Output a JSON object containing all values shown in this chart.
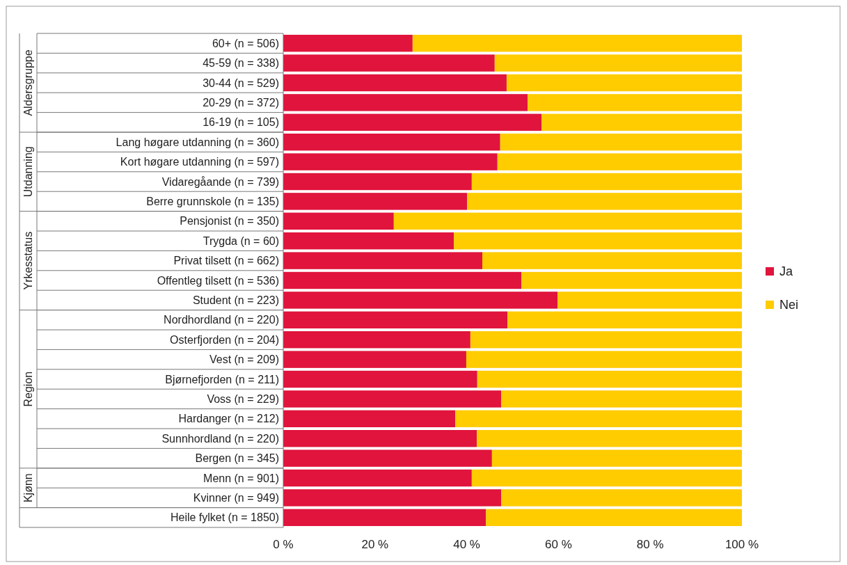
{
  "chart_data": {
    "type": "bar",
    "orientation": "horizontal",
    "stacked": true,
    "legend": "right",
    "grid": false,
    "categories": [
      "60+ (n = 506)",
      "45-59 (n = 338)",
      "30-44 (n = 529)",
      "20-29 (n = 372)",
      "16-19 (n = 105)",
      "Lang høgare utdanning (n = 360)",
      "Kort høgare utdanning (n = 597)",
      "Vidaregåande (n = 739)",
      "Berre grunnskole (n = 135)",
      "Pensjonist (n = 350)",
      "Trygda (n = 60)",
      "Privat tilsett (n = 662)",
      "Offentleg tilsett (n = 536)",
      "Student (n = 223)",
      "Nordhordland (n = 220)",
      "Osterfjorden (n = 204)",
      "Vest (n = 209)",
      "Bjørnefjorden (n = 211)",
      "Voss (n = 229)",
      "Hardanger (n = 212)",
      "Sunnhordland (n = 220)",
      "Bergen (n = 345)",
      "Menn (n = 901)",
      "Kvinner (n = 949)",
      "Heile fylket (n = 1850)"
    ],
    "series": [
      {
        "name": "Ja",
        "color": "#e0143c",
        "values": [
          28.2,
          46.1,
          48.7,
          53.3,
          56.3,
          47.3,
          46.7,
          41.1,
          40.1,
          24.1,
          37.2,
          43.4,
          51.9,
          59.8,
          48.9,
          40.8,
          39.9,
          42.3,
          47.5,
          37.5,
          42.2,
          45.5,
          41.1,
          47.5,
          44.2
        ]
      },
      {
        "name": "Nei",
        "color": "#ffcc00",
        "values": [
          71.8,
          53.9,
          51.3,
          46.7,
          43.7,
          52.7,
          53.3,
          58.9,
          59.9,
          75.9,
          62.8,
          56.6,
          48.1,
          40.2,
          51.1,
          59.2,
          60.1,
          57.7,
          52.5,
          62.5,
          57.8,
          54.5,
          58.9,
          52.5,
          55.8
        ]
      }
    ],
    "xlim": [
      0,
      100
    ],
    "xticks": [
      {
        "value": 0,
        "label": "0 %"
      },
      {
        "value": 20,
        "label": "20 %"
      },
      {
        "value": 40,
        "label": "40 %"
      },
      {
        "value": 60,
        "label": "60 %"
      },
      {
        "value": 80,
        "label": "80 %"
      },
      {
        "value": 100,
        "label": "100 %"
      }
    ],
    "annotations": [
      "Aldersgruppe",
      "Utdanning",
      "Yrkesstatus",
      "Region",
      "Kjønn"
    ]
  }
}
